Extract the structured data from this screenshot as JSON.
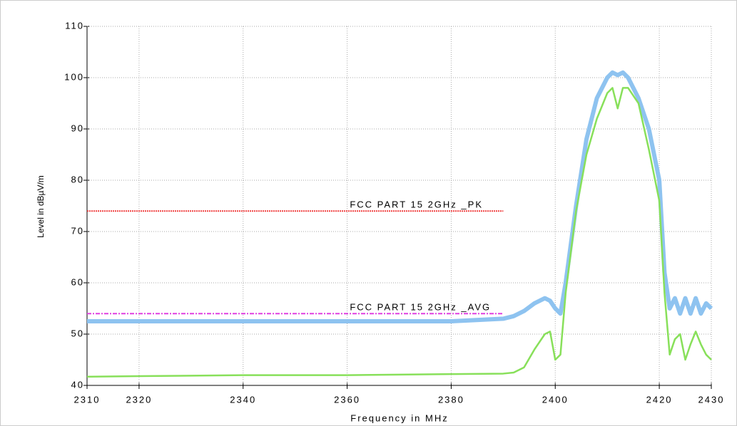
{
  "chart_data": {
    "type": "line",
    "xlabel": "Frequency in MHz",
    "ylabel": "Level in dBµV/m",
    "x": [
      2310,
      2320,
      2330,
      2340,
      2350,
      2360,
      2370,
      2380,
      2390,
      2392,
      2394,
      2396,
      2398,
      2399,
      2400,
      2401,
      2402,
      2404,
      2406,
      2408,
      2410,
      2411,
      2412,
      2413,
      2414,
      2416,
      2418,
      2420,
      2421,
      2422,
      2423,
      2424,
      2425,
      2426,
      2427,
      2428,
      2429,
      2430
    ],
    "series": [
      {
        "color": "#8ec3f0",
        "values": [
          52.5,
          52.5,
          52.5,
          52.5,
          52.5,
          52.5,
          52.5,
          52.5,
          53,
          53.5,
          54.5,
          56,
          57,
          56.5,
          55,
          54,
          60,
          75,
          88,
          96,
          100,
          101,
          100.5,
          101,
          100,
          96,
          90,
          80,
          62,
          55,
          57,
          54,
          57,
          54,
          57,
          54,
          56,
          55
        ]
      },
      {
        "color": "#88e05a",
        "values": [
          41.7,
          41.8,
          41.9,
          42,
          42,
          42,
          42.1,
          42.2,
          42.3,
          42.5,
          43.5,
          47,
          50,
          50.5,
          45,
          46,
          58,
          74,
          85,
          92,
          97,
          98,
          94,
          98,
          98,
          95,
          86,
          76,
          58,
          46,
          49,
          50,
          45,
          48,
          50.5,
          48,
          46,
          45
        ]
      }
    ],
    "limits": [
      {
        "name": "FCC PART 15 2GHz _PK",
        "color": "#f04040",
        "value": 74,
        "xrange": [
          2310,
          2390
        ]
      },
      {
        "name": "FCC PART 15 2GHz _AVG",
        "color": "#e040e0",
        "value": 54,
        "xrange": [
          2310,
          2390
        ]
      }
    ],
    "xlim": [
      2310,
      2430
    ],
    "xticks": [
      2310,
      2320,
      2340,
      2360,
      2380,
      2400,
      2420,
      2430
    ],
    "ylim": [
      40,
      110
    ],
    "yticks": [
      40,
      50,
      60,
      70,
      80,
      90,
      100,
      110
    ],
    "grid": true
  }
}
